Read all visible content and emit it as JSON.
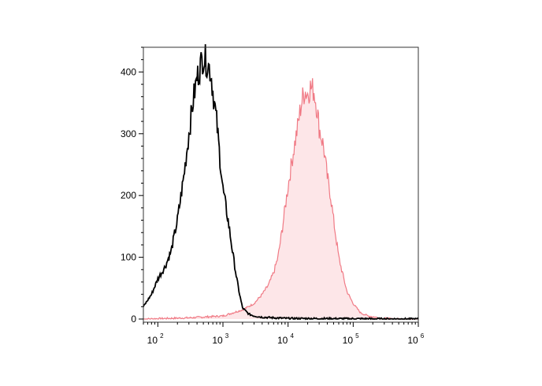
{
  "chart_data": {
    "type": "area",
    "title": "",
    "xlabel": "",
    "ylabel": "",
    "x_scale": "log",
    "xlim": [
      60,
      1000000
    ],
    "ylim": [
      0,
      440
    ],
    "grid": false,
    "legend": "none",
    "x_ticks": [
      {
        "value": 100,
        "base": "10",
        "exp": "2"
      },
      {
        "value": 1000,
        "base": "10",
        "exp": "3"
      },
      {
        "value": 10000,
        "base": "10",
        "exp": "4"
      },
      {
        "value": 100000,
        "base": "10",
        "exp": "5"
      },
      {
        "value": 1000000,
        "base": "10",
        "exp": "6"
      }
    ],
    "y_ticks": [
      {
        "value": 0,
        "label": "0"
      },
      {
        "value": 100,
        "label": "100"
      },
      {
        "value": 200,
        "label": "200"
      },
      {
        "value": 300,
        "label": "300"
      },
      {
        "value": 400,
        "label": "400"
      }
    ],
    "series": [
      {
        "style": "line",
        "color": "#000000",
        "x": [
          60,
          80,
          100,
          130,
          160,
          200,
          250,
          300,
          350,
          400,
          450,
          500,
          550,
          600,
          650,
          700,
          800,
          900,
          1000,
          1200,
          1400,
          1600,
          1800,
          2000,
          2500,
          3000,
          4000,
          6000,
          10000,
          1000000
        ],
        "y": [
          20,
          40,
          65,
          85,
          110,
          160,
          230,
          300,
          355,
          390,
          410,
          425,
          418,
          410,
          400,
          370,
          320,
          260,
          210,
          160,
          110,
          70,
          40,
          18,
          8,
          5,
          3,
          2,
          1,
          0
        ]
      },
      {
        "style": "filled",
        "color": "#f07a85",
        "fill": "#fde6e8",
        "x": [
          60,
          300,
          1000,
          2000,
          3000,
          4000,
          5000,
          6000,
          7000,
          8000,
          9000,
          10000,
          12000,
          14000,
          16000,
          18000,
          20000,
          22000,
          25000,
          28000,
          30000,
          35000,
          40000,
          45000,
          50000,
          60000,
          70000,
          80000,
          100000,
          130000,
          170000,
          250000,
          400000,
          1000000
        ],
        "y": [
          0,
          2,
          5,
          15,
          25,
          40,
          55,
          75,
          100,
          140,
          180,
          215,
          270,
          310,
          350,
          370,
          365,
          375,
          370,
          340,
          310,
          280,
          230,
          200,
          160,
          100,
          70,
          45,
          25,
          10,
          5,
          2,
          0,
          0
        ]
      }
    ]
  }
}
